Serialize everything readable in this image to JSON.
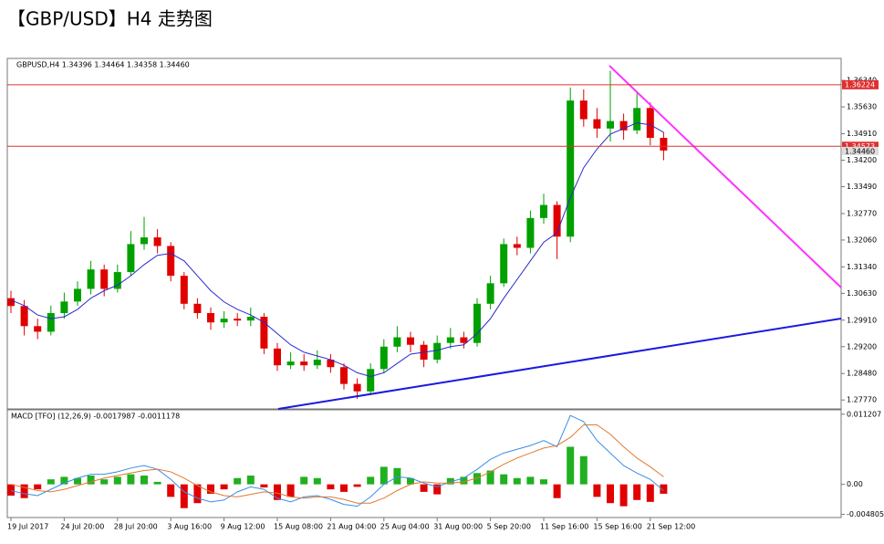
{
  "title": "【GBP/USD】H4 走势图",
  "chart_data": [
    {
      "type": "candlestick",
      "label": "GBPUSD,H4  1.34396 1.34464 1.34358 1.34460",
      "categories": [
        "19 Jul 2017",
        null,
        null,
        null,
        "24 Jul 20:00",
        null,
        null,
        null,
        "28 Jul 20:00",
        null,
        null,
        null,
        "3 Aug 16:00",
        null,
        null,
        null,
        "9 Aug 12:00",
        null,
        null,
        null,
        "15 Aug 08:00",
        null,
        null,
        null,
        "21 Aug 04:00",
        null,
        null,
        null,
        "25 Aug 04:00",
        null,
        null,
        null,
        "31 Aug 00:00",
        null,
        null,
        null,
        "5 Sep 20:00",
        null,
        null,
        null,
        "11 Sep 16:00",
        null,
        null,
        null,
        "15 Sep 16:00",
        null,
        null,
        null,
        "21 Sep 12:00",
        null
      ],
      "open": [
        1.305,
        1.3029,
        1.2975,
        1.296,
        1.301,
        1.3041,
        1.3075,
        1.3127,
        1.3075,
        1.312,
        1.3195,
        1.3213,
        1.319,
        1.311,
        1.3035,
        1.301,
        1.2985,
        1.2995,
        1.299,
        1.3,
        1.2915,
        1.287,
        1.288,
        1.287,
        1.2885,
        1.2865,
        1.282,
        1.28,
        1.286,
        1.292,
        1.2945,
        1.2925,
        1.2885,
        1.293,
        1.2945,
        1.293,
        1.3035,
        1.309,
        1.3195,
        1.3185,
        1.3265,
        1.33,
        1.3215,
        1.358,
        1.353,
        1.3505,
        1.3525,
        1.35,
        1.356,
        1.348
      ],
      "high": [
        1.307,
        1.3045,
        1.2995,
        1.303,
        1.3065,
        1.3095,
        1.315,
        1.314,
        1.314,
        1.323,
        1.3268,
        1.3235,
        1.32,
        1.312,
        1.305,
        1.3025,
        1.3015,
        1.301,
        1.3025,
        1.301,
        1.293,
        1.2905,
        1.29,
        1.291,
        1.29,
        1.2875,
        1.2835,
        1.2875,
        1.294,
        1.2975,
        1.296,
        1.2935,
        1.295,
        1.297,
        1.296,
        1.305,
        1.311,
        1.321,
        1.3215,
        1.3285,
        1.333,
        1.331,
        1.3615,
        1.361,
        1.356,
        1.366,
        1.3545,
        1.36,
        1.3575,
        1.3495
      ],
      "low": [
        1.301,
        1.295,
        1.294,
        1.295,
        1.2995,
        1.303,
        1.306,
        1.3055,
        1.3065,
        1.311,
        1.318,
        1.317,
        1.3095,
        1.302,
        1.2995,
        1.2965,
        1.297,
        1.2975,
        1.2975,
        1.29,
        1.2855,
        1.286,
        1.2855,
        1.286,
        1.285,
        1.2805,
        1.278,
        1.279,
        1.285,
        1.2905,
        1.2905,
        1.2865,
        1.2875,
        1.2915,
        1.2915,
        1.292,
        1.302,
        1.308,
        1.3165,
        1.317,
        1.325,
        1.3155,
        1.32,
        1.351,
        1.348,
        1.347,
        1.3475,
        1.349,
        1.346,
        1.342
      ],
      "close": [
        1.3029,
        1.2975,
        1.296,
        1.301,
        1.3041,
        1.3075,
        1.3127,
        1.3075,
        1.312,
        1.3195,
        1.3213,
        1.319,
        1.311,
        1.3035,
        1.301,
        1.2985,
        1.2995,
        1.299,
        1.3,
        1.2915,
        1.287,
        1.288,
        1.287,
        1.2885,
        1.2865,
        1.282,
        1.28,
        1.286,
        1.292,
        1.2945,
        1.2925,
        1.2885,
        1.293,
        1.2945,
        1.293,
        1.3035,
        1.309,
        1.3195,
        1.3185,
        1.3265,
        1.33,
        1.3215,
        1.358,
        1.353,
        1.3505,
        1.3525,
        1.35,
        1.356,
        1.348,
        1.3446
      ],
      "up_color": "#00a000",
      "down_color": "#e00000",
      "ma": {
        "color": "#2a2ad0",
        "values": [
          1.3045,
          1.303,
          1.3005,
          1.2995,
          1.3,
          1.302,
          1.305,
          1.307,
          1.3085,
          1.311,
          1.314,
          1.3165,
          1.317,
          1.315,
          1.311,
          1.307,
          1.304,
          1.302,
          1.3005,
          1.2985,
          1.2955,
          1.2925,
          1.2905,
          1.2895,
          1.2885,
          1.287,
          1.285,
          1.284,
          1.285,
          1.2875,
          1.29,
          1.2905,
          1.291,
          1.292,
          1.2925,
          1.2955,
          1.2995,
          1.305,
          1.31,
          1.315,
          1.32,
          1.3225,
          1.332,
          1.34,
          1.345,
          1.349,
          1.3505,
          1.352,
          1.3515,
          1.3495
        ]
      },
      "ylim": [
        1.2753,
        1.3693
      ],
      "yticks": [
        {
          "value": 1.2777,
          "label": "1.27770"
        },
        {
          "value": 1.2848,
          "label": "1.28480"
        },
        {
          "value": 1.292,
          "label": "1.29200"
        },
        {
          "value": 1.2991,
          "label": "1.29910"
        },
        {
          "value": 1.3063,
          "label": "1.30630"
        },
        {
          "value": 1.3134,
          "label": "1.31340"
        },
        {
          "value": 1.3206,
          "label": "1.32060"
        },
        {
          "value": 1.3277,
          "label": "1.32770"
        },
        {
          "value": 1.3349,
          "label": "1.33490"
        },
        {
          "value": 1.342,
          "label": "1.34200"
        },
        {
          "value": 1.3491,
          "label": "1.34910"
        },
        {
          "value": 1.3563,
          "label": "1.35630"
        },
        {
          "value": 1.3634,
          "label": "1.36340"
        }
      ],
      "hlines": {
        "color": "#e03030",
        "values": [
          1.36224,
          1.34573
        ]
      },
      "last_price": {
        "value": 1.3446,
        "label": "1.34460"
      }
    },
    {
      "type": "macd",
      "label": "MACD [TFO] (12,26,9) -0.0017987 -0.0011178",
      "histogram": {
        "up_color": "#20b020",
        "down_color": "#e00000",
        "values": [
          -0.0018,
          -0.0022,
          -0.0008,
          0.0008,
          0.0012,
          0.001,
          0.0014,
          0.0008,
          0.0012,
          0.0016,
          0.0014,
          0.0004,
          -0.002,
          -0.0038,
          -0.003,
          -0.0015,
          -0.0008,
          0.001,
          0.0014,
          -0.0005,
          -0.0025,
          -0.002,
          0.0012,
          0.001,
          -0.0008,
          -0.0012,
          -0.0004,
          0.0012,
          0.0028,
          0.0026,
          0.001,
          -0.0012,
          -0.0016,
          0.001,
          0.0012,
          0.0018,
          0.0022,
          0.0016,
          0.001,
          0.0012,
          0.0008,
          -0.0022,
          0.006,
          0.0045,
          -0.002,
          -0.003,
          -0.0035,
          -0.0025,
          -0.0028,
          -0.0015
        ]
      },
      "series": [
        {
          "color": "#3a8ee6",
          "values": [
            -0.001,
            -0.0015,
            -0.0018,
            -0.0008,
            0.0002,
            0.001,
            0.0016,
            0.0016,
            0.002,
            0.0026,
            0.003,
            0.0024,
            0.0008,
            -0.0012,
            -0.0022,
            -0.0028,
            -0.0025,
            -0.0012,
            -0.0004,
            -0.0008,
            -0.0022,
            -0.0028,
            -0.002,
            -0.0018,
            -0.0024,
            -0.0032,
            -0.0035,
            -0.002,
            0.0,
            0.0012,
            0.001,
            0.0002,
            -0.0004,
            0.0004,
            0.001,
            0.0024,
            0.004,
            0.005,
            0.0056,
            0.0062,
            0.007,
            0.006,
            0.011,
            0.01,
            0.007,
            0.005,
            0.003,
            0.0018,
            0.0008,
            -0.001
          ]
        },
        {
          "color": "#e07a30",
          "values": [
            0.0,
            -0.0005,
            -0.001,
            -0.0012,
            -0.0008,
            -0.0002,
            0.0004,
            0.001,
            0.0014,
            0.0018,
            0.0022,
            0.0024,
            0.002,
            0.001,
            -0.0002,
            -0.0012,
            -0.0018,
            -0.002,
            -0.0016,
            -0.0012,
            -0.0014,
            -0.002,
            -0.0022,
            -0.002,
            -0.002,
            -0.0024,
            -0.003,
            -0.003,
            -0.0022,
            -0.001,
            0.0,
            0.0004,
            0.0002,
            0.0002,
            0.0004,
            0.001,
            0.002,
            0.0032,
            0.0042,
            0.005,
            0.0058,
            0.0062,
            0.0075,
            0.0095,
            0.0095,
            0.008,
            0.006,
            0.0042,
            0.0028,
            0.0012
          ]
        }
      ],
      "ylim": [
        -0.0053,
        0.0119
      ],
      "yticks": [
        0.011207,
        {
          "value": 0,
          "label": "0.00"
        },
        -0.004805
      ]
    }
  ]
}
